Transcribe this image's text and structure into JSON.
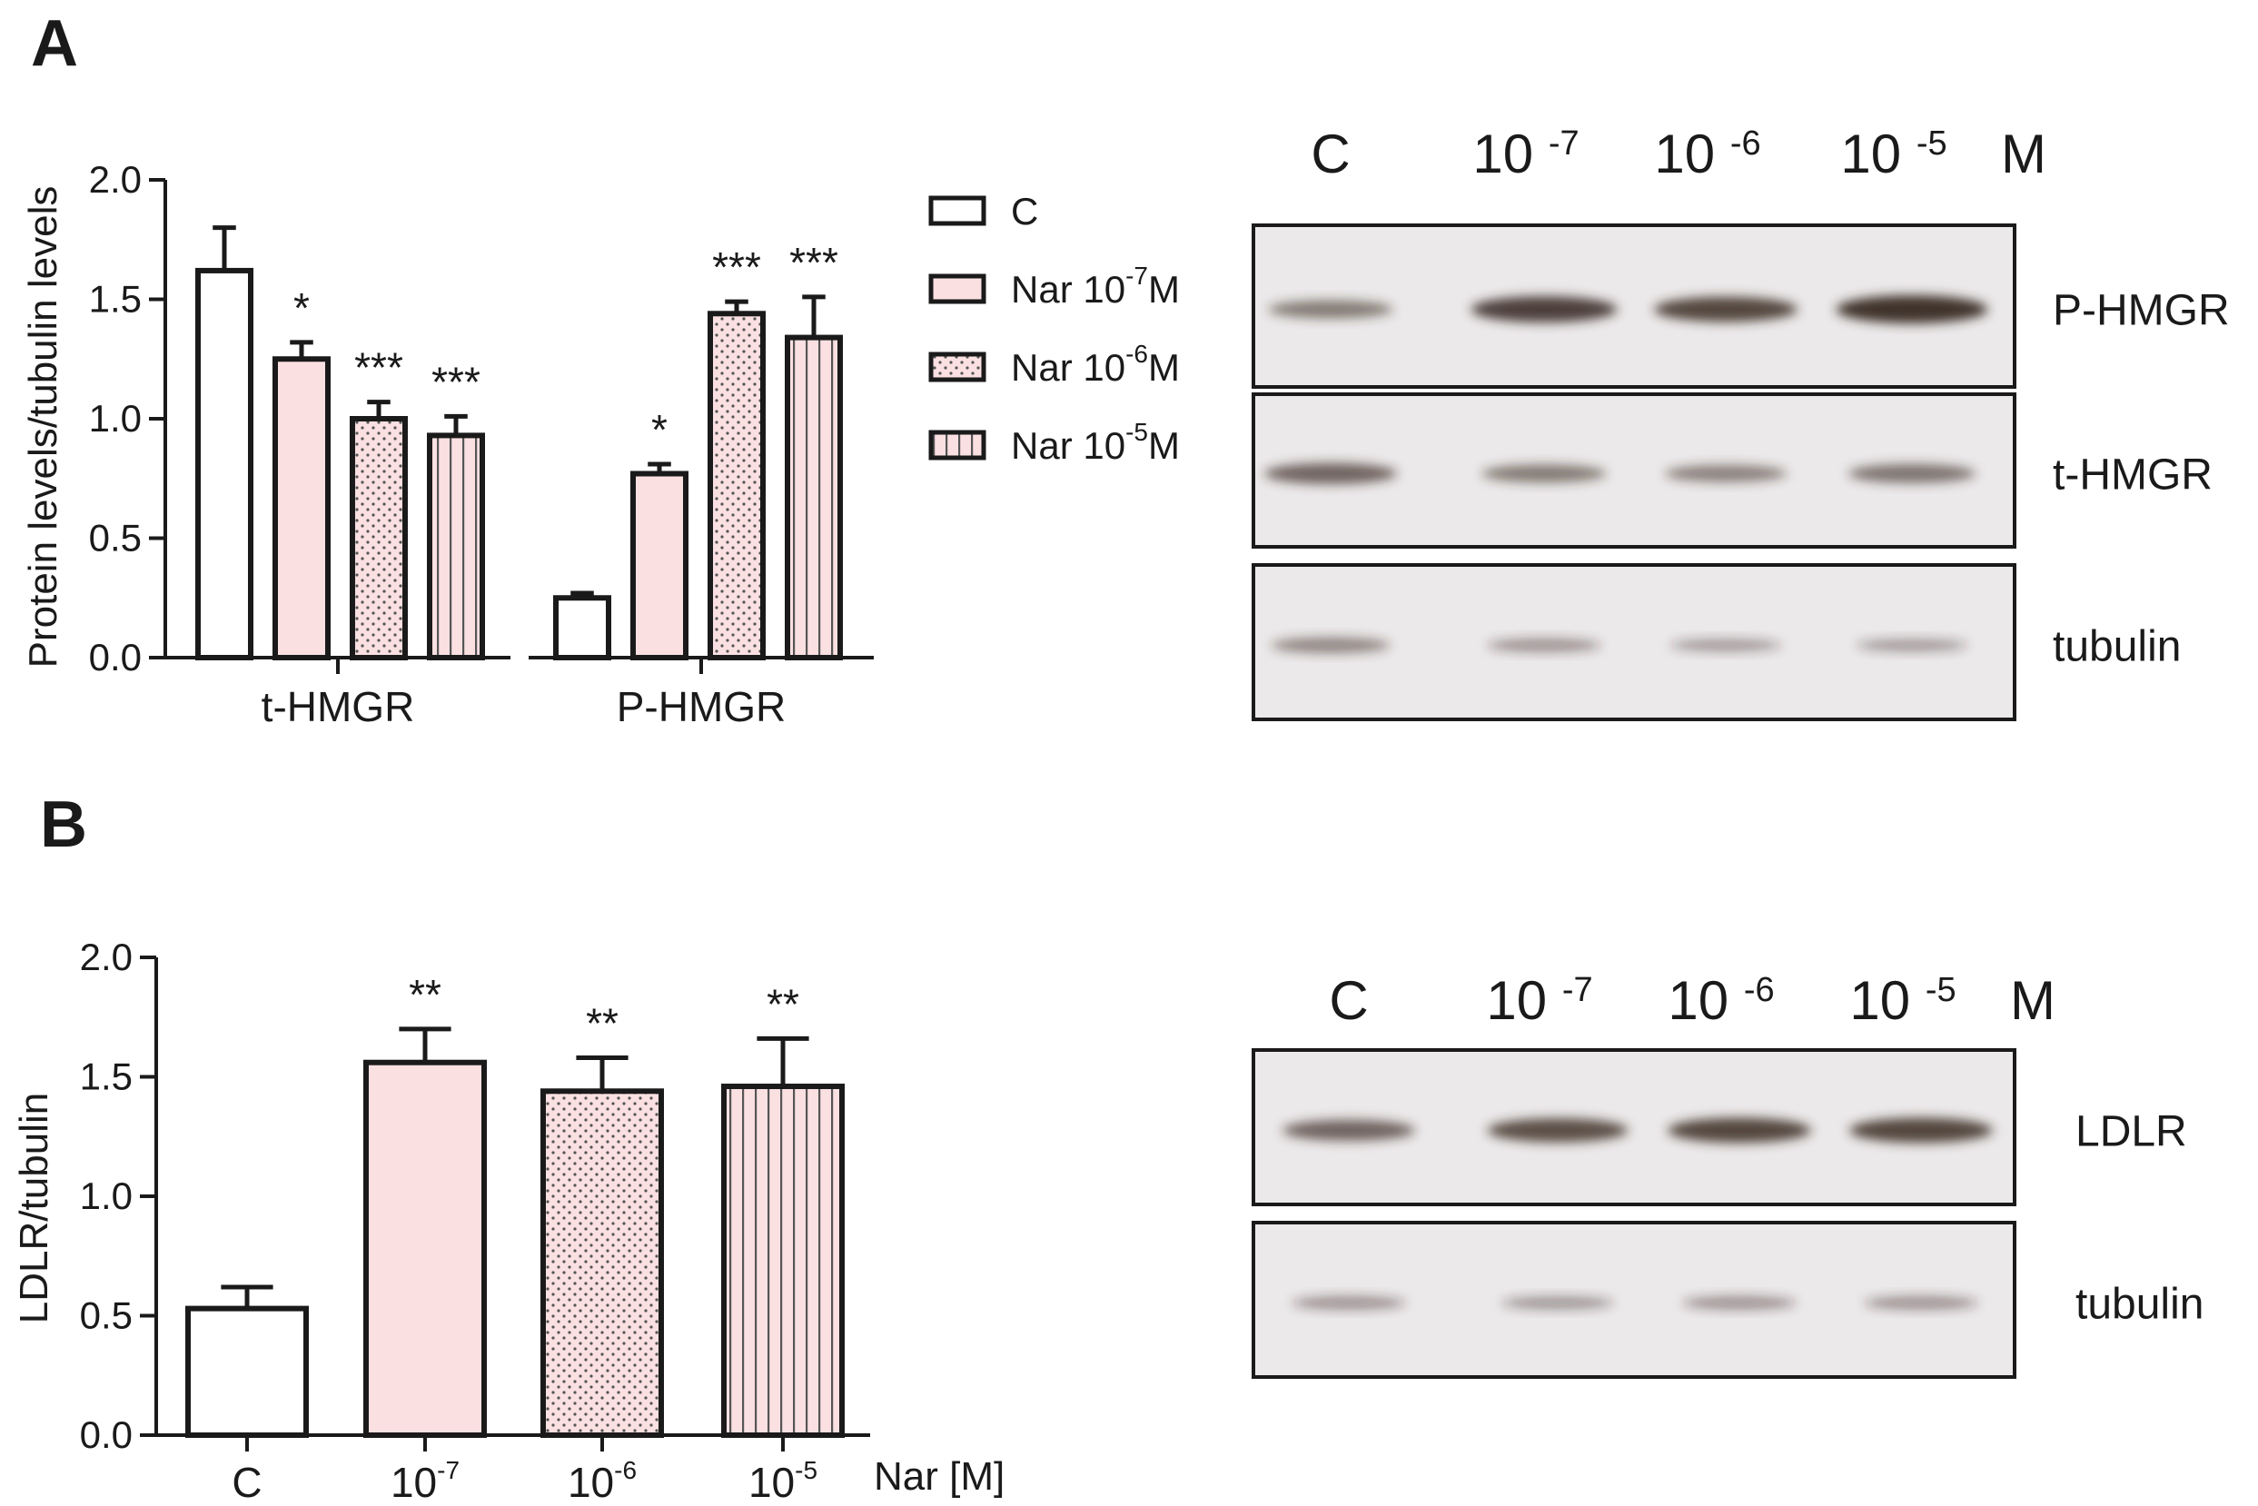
{
  "panels": {
    "A": {
      "letter": "A",
      "chart_data": {
        "type": "bar",
        "categories": [
          "t-HMGR",
          "P-HMGR"
        ],
        "ylabel": "Protein levels/tubulin levels",
        "xlabel": "",
        "ylim": [
          0,
          2.0
        ],
        "yticks": [
          "0.0",
          "0.5",
          "1.0",
          "1.5",
          "2.0"
        ],
        "grid": false,
        "legend_position": "right",
        "series": [
          {
            "name": "C",
            "values": [
              1.62,
              0.25
            ],
            "errors": [
              0.18,
              0.02
            ],
            "significance": [
              "",
              ""
            ],
            "pattern": "white"
          },
          {
            "name": "Nar 10-7M",
            "values": [
              1.25,
              0.77
            ],
            "errors": [
              0.07,
              0.04
            ],
            "significance": [
              "*",
              "*"
            ],
            "pattern": "pink"
          },
          {
            "name": "Nar 10-6M",
            "values": [
              1.0,
              1.44
            ],
            "errors": [
              0.07,
              0.05
            ],
            "significance": [
              "***",
              "***"
            ],
            "pattern": "dots"
          },
          {
            "name": "Nar 10-5M",
            "values": [
              0.93,
              1.34
            ],
            "errors": [
              0.08,
              0.17
            ],
            "significance": [
              "***",
              "***"
            ],
            "pattern": "vlines"
          }
        ]
      },
      "legend": [
        {
          "base": "C",
          "sup": "",
          "tail": ""
        },
        {
          "base": "Nar 10",
          "sup": "-7",
          "tail": "M"
        },
        {
          "base": "Nar 10",
          "sup": "-6",
          "tail": "M"
        },
        {
          "base": "Nar 10",
          "sup": "-5",
          "tail": "M"
        }
      ],
      "blot": {
        "lanes": [
          {
            "base": "C",
            "sup": ""
          },
          {
            "base": "10 ",
            "sup": "-7"
          },
          {
            "base": "10 ",
            "sup": "-6"
          },
          {
            "base": "10 ",
            "sup": "-5"
          }
        ],
        "unit": "M",
        "rows": [
          {
            "label": "P-HMGR",
            "intensities": [
              0.45,
              0.85,
              0.8,
              0.95
            ]
          },
          {
            "label": "t-HMGR",
            "intensities": [
              0.6,
              0.45,
              0.4,
              0.5
            ]
          },
          {
            "label": "tubulin",
            "intensities": [
              0.35,
              0.25,
              0.2,
              0.2
            ]
          }
        ]
      }
    },
    "B": {
      "letter": "B",
      "chart_data": {
        "type": "bar",
        "categories": [
          "C",
          "10-7",
          "10-6",
          "10-5"
        ],
        "category_labels": [
          {
            "base": "C",
            "sup": ""
          },
          {
            "base": "10",
            "sup": "-7"
          },
          {
            "base": "10",
            "sup": "-6"
          },
          {
            "base": "10",
            "sup": "-5"
          }
        ],
        "values": [
          0.53,
          1.56,
          1.44,
          1.46
        ],
        "errors": [
          0.09,
          0.14,
          0.14,
          0.2
        ],
        "significance": [
          "",
          "**",
          "**",
          "**"
        ],
        "patterns": [
          "white",
          "pink",
          "dots",
          "vlines"
        ],
        "ylabel": "LDLR/tubulin",
        "xlabel": "Nar [M]",
        "ylim": [
          0,
          2.0
        ],
        "yticks": [
          "0.0",
          "0.5",
          "1.0",
          "1.5",
          "2.0"
        ],
        "grid": false
      },
      "blot": {
        "lanes": [
          {
            "base": "C",
            "sup": ""
          },
          {
            "base": "10 ",
            "sup": "-7"
          },
          {
            "base": "10 ",
            "sup": "-6"
          },
          {
            "base": "10 ",
            "sup": "-5"
          }
        ],
        "unit": "M",
        "rows": [
          {
            "label": "LDLR",
            "intensities": [
              0.6,
              0.75,
              0.8,
              0.8
            ]
          },
          {
            "label": "tubulin",
            "intensities": [
              0.25,
              0.22,
              0.25,
              0.25
            ]
          }
        ]
      }
    }
  },
  "colors": {
    "axis": "#1a1a1a",
    "pink_fill": "#fbe0e2",
    "white_fill": "#ffffff",
    "blot_bg": "#ebe9ea",
    "band": "#3a2a22"
  }
}
